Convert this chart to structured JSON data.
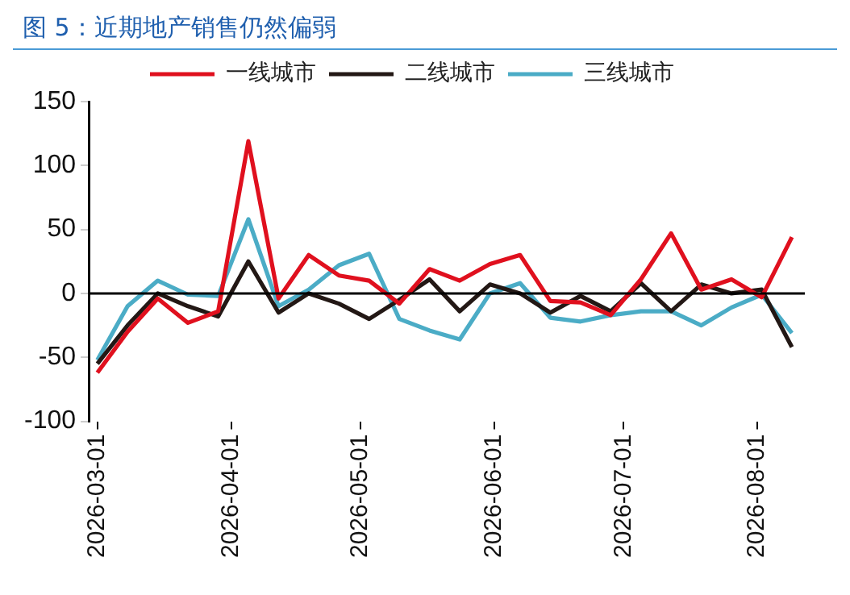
{
  "chart_data": {
    "type": "line",
    "title": "图 5：近期地产销售仍然偏弱",
    "x": [
      "2026-03-01",
      "2026-03-08",
      "2026-03-15",
      "2026-03-22",
      "2026-03-29",
      "2026-04-05",
      "2026-04-12",
      "2026-04-19",
      "2026-04-26",
      "2026-05-03",
      "2026-05-10",
      "2026-05-17",
      "2026-05-24",
      "2026-05-31",
      "2026-06-07",
      "2026-06-14",
      "2026-06-21",
      "2026-06-28",
      "2026-07-05",
      "2026-07-12",
      "2026-07-19",
      "2026-07-26",
      "2026-08-02",
      "2026-08-09"
    ],
    "series": [
      {
        "name": "一线城市",
        "color": "#e0101e",
        "values": [
          -62,
          -30,
          -4,
          -23,
          -14,
          119,
          -4,
          30,
          14,
          10,
          -8,
          19,
          10,
          23,
          30,
          -6,
          -7,
          -17,
          11,
          47,
          3,
          11,
          -3,
          44
        ]
      },
      {
        "name": "二线城市",
        "color": "#231815",
        "values": [
          -55,
          -25,
          0,
          -10,
          -18,
          25,
          -15,
          0,
          -8,
          -20,
          -5,
          11,
          -14,
          7,
          0,
          -15,
          -2,
          -14,
          8,
          -14,
          7,
          0,
          3,
          -42
        ]
      },
      {
        "name": "三线城市",
        "color": "#4bacc6",
        "values": [
          -52,
          -10,
          10,
          -1,
          -2,
          58,
          -10,
          3,
          22,
          31,
          -20,
          -29,
          -36,
          0,
          8,
          -19,
          -22,
          -17,
          -14,
          -14,
          -25,
          -11,
          -1,
          -31
        ]
      }
    ],
    "xlim": [
      "2026-02-27",
      "2026-08-12"
    ],
    "xticks": [
      "2026-03-01",
      "2026-04-01",
      "2026-05-01",
      "2026-06-01",
      "2026-07-01",
      "2026-08-01"
    ],
    "ylim": [
      -100,
      150
    ],
    "yticks": [
      -100,
      -50,
      0,
      50,
      100,
      150
    ],
    "ref_lines": [
      {
        "axis": "y",
        "value": 0,
        "color": "#000000"
      }
    ],
    "grid": false,
    "legend": "top",
    "marker": "none",
    "line_style": "solid"
  }
}
